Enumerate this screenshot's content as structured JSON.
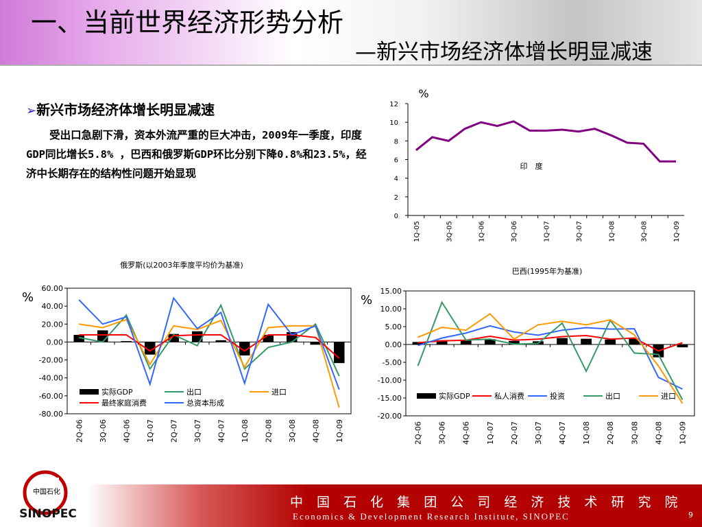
{
  "header": {
    "title": "一、当前世界经济形势分析",
    "subtitle": "—新兴市场经济体增长明显减速"
  },
  "content": {
    "bullet_arrow": "➢",
    "bullet_title": "新兴市场经济体增长明显减速",
    "paragraph": "受出口急剧下滑，资本外流严重的巨大冲击，2009年一季度，印度GDP同比增长5.8% ，巴西和俄罗斯GDP环比分别下降0.8%和23.5%，经济中长期存在的结构性问题开始显现"
  },
  "footer": {
    "org_cn": "中 国 石 化 集 团 公 司 经 济 技 术 研 究 院",
    "org_en": "Economics & Development Research Institute, SINOPEC",
    "page_number": "9",
    "logo_text": "SINOPEC",
    "logo_cn": "中国石化"
  },
  "colors": {
    "india_line": "#800080",
    "bar": "#000000",
    "red": "#ff0000",
    "green": "#339966",
    "orange": "#ff9900",
    "blue": "#3366ff",
    "footer_red": "#b30000"
  },
  "chart_data": [
    {
      "type": "line",
      "unit_label": "%",
      "annotation": "印　度",
      "x": [
        "1Q-05",
        "2Q-05",
        "3Q-05",
        "4Q-05",
        "1Q-06",
        "2Q-06",
        "3Q-06",
        "4Q-06",
        "1Q-07",
        "2Q-07",
        "3Q-07",
        "4Q-07",
        "1Q-08",
        "2Q-08",
        "3Q-08",
        "4Q-08",
        "1Q-09"
      ],
      "x_tick_labels": [
        "1Q-05",
        "3Q-05",
        "1Q-06",
        "3Q-06",
        "1Q-07",
        "3Q-07",
        "1Q-08",
        "3Q-08",
        "1Q-09"
      ],
      "y_ticks": [
        "0",
        "2",
        "4",
        "6",
        "8",
        "10",
        "12"
      ],
      "ylim": [
        0,
        12
      ],
      "series": [
        {
          "color": "#800080",
          "values": [
            7.0,
            8.4,
            8.0,
            9.3,
            10.0,
            9.6,
            10.1,
            9.1,
            9.1,
            9.2,
            9.0,
            9.3,
            8.6,
            7.8,
            7.7,
            5.8,
            5.8
          ]
        }
      ]
    },
    {
      "type": "bar+line",
      "title": "俄罗斯(以2003年季度平均价为基准)",
      "unit_label": "%",
      "x": [
        "2Q-06",
        "3Q-06",
        "4Q-06",
        "1Q-07",
        "2Q-07",
        "3Q-07",
        "4Q-07",
        "1Q-08",
        "2Q-08",
        "3Q-08",
        "4Q-08",
        "1Q-09"
      ],
      "y_ticks": [
        "60.00",
        "40.00",
        "20.00",
        "0.00",
        "-20.00",
        "-40.00",
        "-60.00",
        "-80.00"
      ],
      "ylim": [
        -80,
        60
      ],
      "bar_series": {
        "name": "实际GDP",
        "color": "#000000",
        "values": [
          8,
          13,
          1,
          -14,
          9,
          12,
          2,
          -15,
          8,
          11,
          -3,
          -23.5
        ]
      },
      "line_series": [
        {
          "name": "出口",
          "color": "#339966",
          "values": [
            5,
            0,
            30,
            -30,
            8,
            -4,
            41,
            -30,
            -6,
            0,
            20,
            -38
          ]
        },
        {
          "name": "进口",
          "color": "#ff9900",
          "values": [
            20,
            16,
            25,
            -25,
            18,
            14,
            24,
            -28,
            16,
            18,
            18,
            -73
          ]
        },
        {
          "name": "最终家庭消费",
          "color": "#ff0000",
          "values": [
            8,
            8,
            8,
            -10,
            7,
            8,
            8,
            -10,
            8,
            8,
            5,
            -18
          ]
        },
        {
          "name": "总资本形成",
          "color": "#3366ff",
          "values": [
            47,
            20,
            28,
            -47,
            49,
            15,
            33,
            -46,
            42,
            8,
            18,
            -53
          ]
        }
      ],
      "legend_rows": [
        [
          "实际GDP",
          "出口",
          "进口"
        ],
        [
          "最终家庭消费",
          "总资本形成"
        ]
      ]
    },
    {
      "type": "bar+line",
      "title": "巴西(1995年为基准)",
      "unit_label": "%",
      "x": [
        "2Q-06",
        "3Q-06",
        "4Q-06",
        "1Q-07",
        "2Q-07",
        "3Q-07",
        "4Q-07",
        "1Q-08",
        "2Q-08",
        "3Q-08",
        "4Q-08",
        "1Q-09"
      ],
      "y_ticks": [
        "15.00",
        "10.00",
        "5.00",
        "0.00",
        "-5.00",
        "-10.00",
        "-15.00",
        "-20.00"
      ],
      "ylim": [
        -20,
        15
      ],
      "bar_series": {
        "name": "实际GDP",
        "color": "#000000",
        "values": [
          0.7,
          1.2,
          1.3,
          1.5,
          1.0,
          0.9,
          1.8,
          1.6,
          1.4,
          1.7,
          -3.6,
          -0.8
        ]
      },
      "line_series": [
        {
          "name": "私人消费",
          "color": "#ff0000",
          "values": [
            0.5,
            1.0,
            1.2,
            2.3,
            1.2,
            1.5,
            2.2,
            2.5,
            1.5,
            1.8,
            -1.8,
            0.5
          ]
        },
        {
          "name": "投资",
          "color": "#3366ff",
          "values": [
            -0.3,
            1.8,
            3.2,
            5.2,
            3.5,
            2.6,
            4.0,
            4.7,
            4.3,
            4.4,
            -9.2,
            -12.5
          ]
        },
        {
          "name": "出口",
          "color": "#339966",
          "values": [
            -6,
            11.8,
            1.2,
            1.5,
            0.1,
            0.3,
            6.0,
            -7.5,
            6.8,
            -2.4,
            -2.8,
            -15.5
          ]
        },
        {
          "name": "进口",
          "color": "#ff9900",
          "values": [
            2.0,
            4.8,
            4.0,
            8.6,
            1.5,
            5.5,
            6.5,
            5.5,
            6.9,
            2.7,
            -6.0,
            -16.5
          ]
        }
      ],
      "legend_rows": [
        [
          "实际GDP",
          "私人消费",
          "投资",
          "出口",
          "进口"
        ]
      ]
    }
  ]
}
